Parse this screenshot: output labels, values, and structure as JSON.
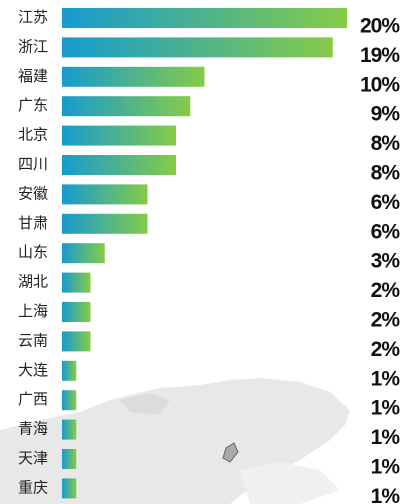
{
  "chart_data": {
    "type": "bar",
    "orientation": "horizontal",
    "categories": [
      "江苏",
      "浙江",
      "福建",
      "广东",
      "北京",
      "四川",
      "安徽",
      "甘肃",
      "山东",
      "湖北",
      "上海",
      "云南",
      "大连",
      "广西",
      "青海",
      "天津",
      "重庆"
    ],
    "values": [
      20,
      19,
      10,
      9,
      8,
      8,
      6,
      6,
      3,
      2,
      2,
      2,
      1,
      1,
      1,
      1,
      1
    ],
    "value_labels": [
      "20%",
      "19%",
      "10%",
      "9%",
      "8%",
      "8%",
      "6%",
      "6%",
      "3%",
      "2%",
      "2%",
      "2%",
      "1%",
      "1%",
      "1%",
      "1%",
      "1%"
    ],
    "gradient": [
      "#169bd0",
      "#86cb47"
    ]
  }
}
